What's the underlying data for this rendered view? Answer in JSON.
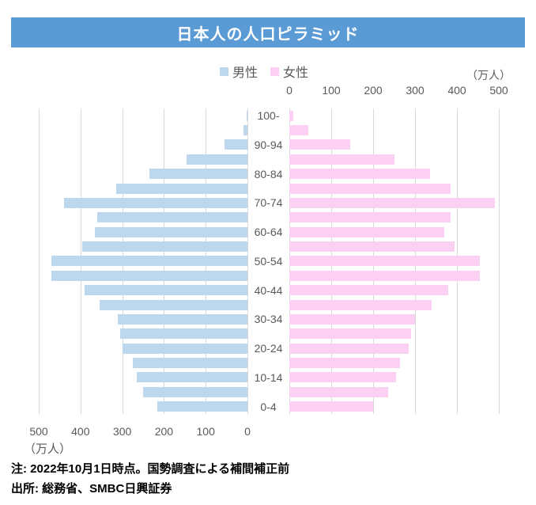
{
  "title": "日本人の人口ピラミッド",
  "legend": {
    "male": "男性",
    "female": "女性"
  },
  "axes": {
    "unit_top": "（万人）",
    "unit_bottom": "（万人）",
    "top_ticks": [
      "0",
      "100",
      "200",
      "300",
      "400",
      "500"
    ],
    "bottom_ticks": [
      "500",
      "400",
      "300",
      "200",
      "100",
      "0"
    ]
  },
  "notes": {
    "line1": "注: 2022年10月1日時点。国勢調査による補間補正前",
    "line2": "出所: 総務省、SMBC日興証券"
  },
  "colors": {
    "male_bar": "#BDD7EE",
    "female_bar": "#FBD0F3",
    "title_bg": "#5B9BD5",
    "gridline": "#D9D9D9",
    "axis_text": "#595959"
  },
  "chart_data": {
    "type": "bar",
    "variant": "population_pyramid",
    "title": "日本人の人口ピラミッド",
    "unit": "万人",
    "xlim": [
      0,
      500
    ],
    "x_ticks": [
      0,
      100,
      200,
      300,
      400,
      500
    ],
    "grid": true,
    "age_groups": [
      "100-",
      "95-99",
      "90-94",
      "85-89",
      "80-84",
      "75-79",
      "70-74",
      "65-69",
      "60-64",
      "55-59",
      "50-54",
      "45-49",
      "40-44",
      "35-39",
      "30-34",
      "25-29",
      "20-24",
      "15-19",
      "10-14",
      "5-9",
      "0-4"
    ],
    "age_tick_labels_shown": [
      "100-",
      "90-94",
      "80-84",
      "70-74",
      "60-64",
      "50-54",
      "40-44",
      "30-34",
      "20-24",
      "10-14",
      "0-4"
    ],
    "series": [
      {
        "name": "男性",
        "side": "left",
        "color": "#BDD7EE",
        "values": [
          2,
          10,
          55,
          145,
          235,
          315,
          440,
          360,
          365,
          395,
          470,
          470,
          390,
          355,
          310,
          305,
          300,
          275,
          265,
          250,
          215
        ]
      },
      {
        "name": "女性",
        "side": "right",
        "color": "#FBD0F3",
        "values": [
          9,
          45,
          145,
          250,
          335,
          385,
          490,
          385,
          370,
          395,
          455,
          455,
          380,
          340,
          300,
          290,
          285,
          265,
          255,
          235,
          200
        ]
      }
    ]
  }
}
